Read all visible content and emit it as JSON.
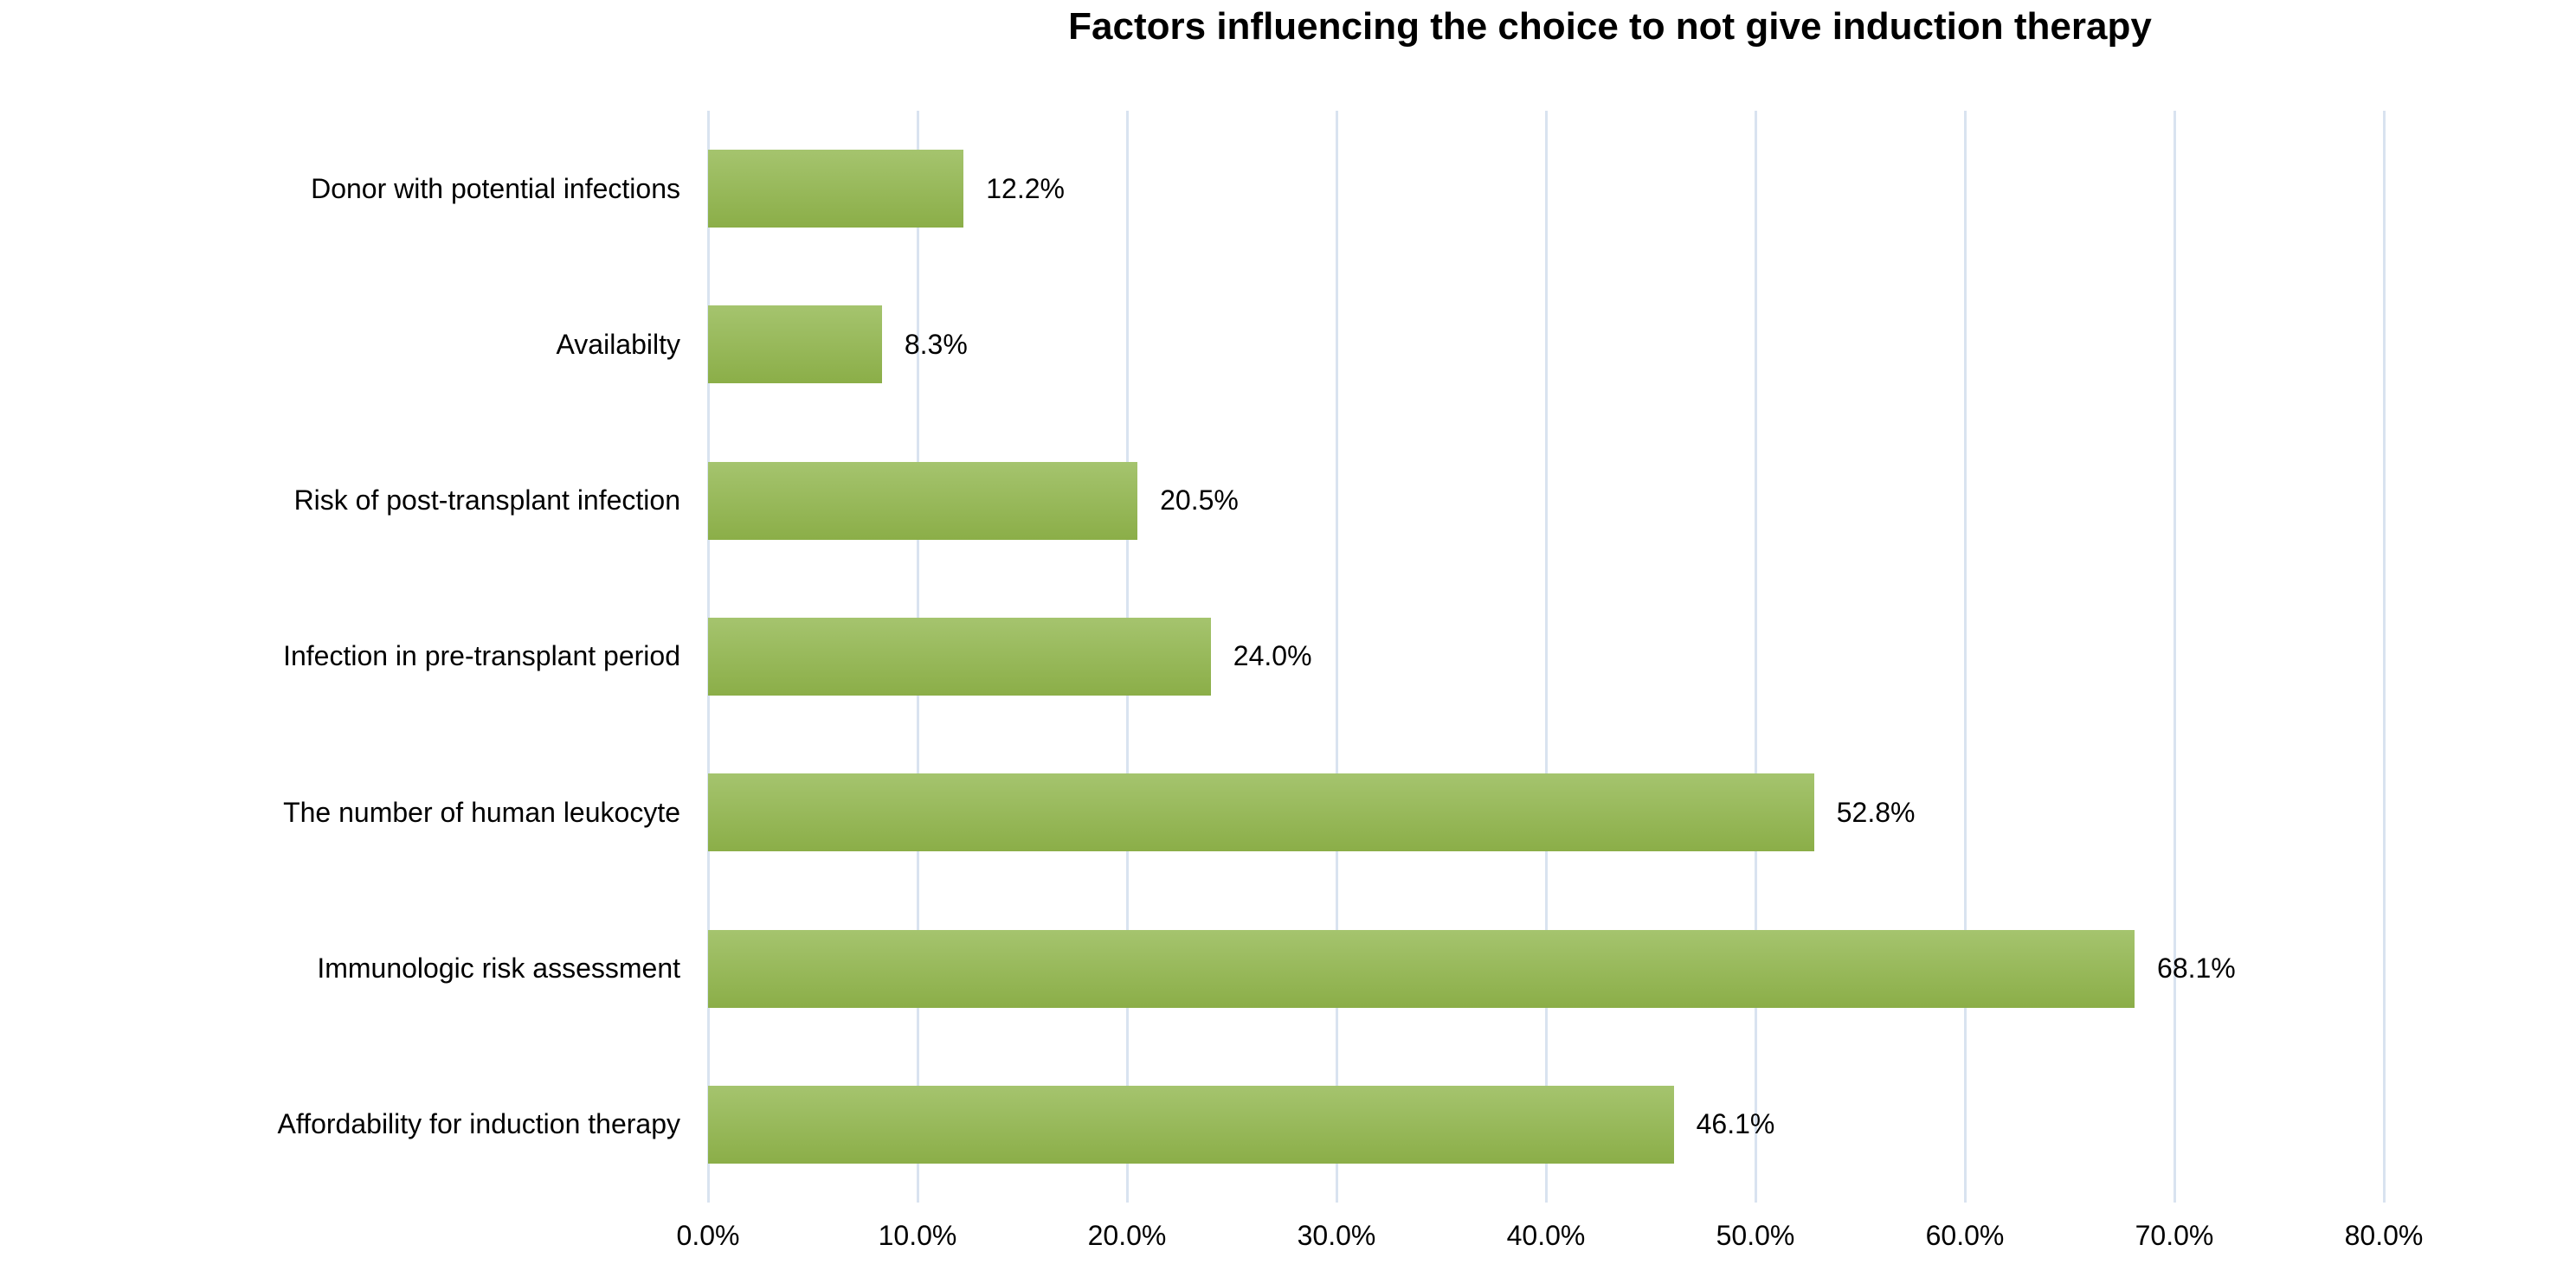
{
  "chart_data": {
    "type": "bar",
    "orientation": "horizontal",
    "title": "Factors influencing the choice to not give induction therapy",
    "categories": [
      "Donor with potential infections",
      "Availabilty",
      "Risk of post-transplant infection",
      "Infection in pre-transplant period",
      "The number of human leukocyte",
      "Immunologic risk assessment",
      "Affordability for induction therapy"
    ],
    "values": [
      12.2,
      8.3,
      20.5,
      24.0,
      52.8,
      68.1,
      46.1
    ],
    "value_labels": [
      "12.2%",
      "8.3%",
      "20.5%",
      "24.0%",
      "52.8%",
      "68.1%",
      "46.1%"
    ],
    "x_ticks": [
      "0.0%",
      "10.0%",
      "20.0%",
      "30.0%",
      "40.0%",
      "50.0%",
      "60.0%",
      "70.0%",
      "80.0%"
    ],
    "xlim": [
      0,
      80
    ],
    "grid": true,
    "legend_position": "none",
    "colors": {
      "bar_gradient_top": "#a5c46e",
      "bar_gradient_bottom": "#8bae48",
      "gridline": "#d9e3f0",
      "text": "#000000",
      "background": "#ffffff"
    }
  }
}
